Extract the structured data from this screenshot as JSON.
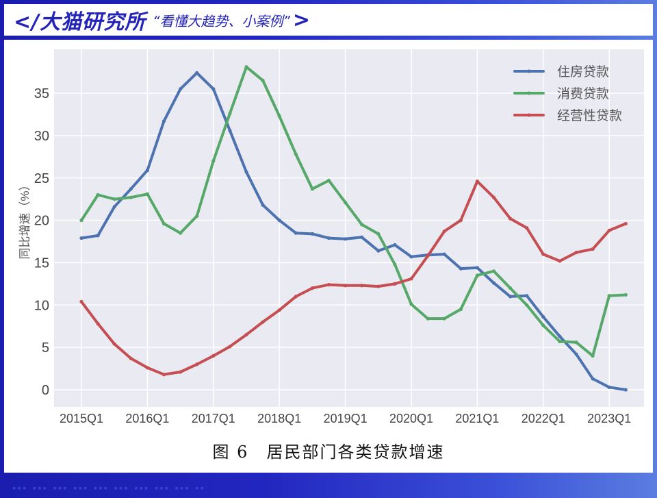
{
  "header": {
    "brand": "</大猫研究所",
    "slogan": "“看懂大趋势、小案例”",
    "brand_close": ">"
  },
  "caption": "图 6　居民部门各类贷款增速",
  "footer_dots": "▪▪▪ ▪▪▪ ▪▪▪ ▪▪▪ ▪▪▪ ▪▪▪ ▪▪▪ ▪▪▪ ▪▪▪ ▪▪",
  "colors": {
    "housing": "#4c72b0",
    "consumer": "#55a868",
    "business": "#c44e52",
    "plot_bg": "#eaeaf2",
    "brand": "#2424b8"
  },
  "chart_data": {
    "type": "line",
    "title": "图 6　居民部门各类贷款增速",
    "xlabel": "",
    "ylabel": "同比增速（%）",
    "ylim": [
      -2,
      39
    ],
    "yticks": [
      0,
      5,
      10,
      15,
      20,
      25,
      30,
      35
    ],
    "xtick_labels": [
      "2015Q1",
      "2016Q1",
      "2017Q1",
      "2018Q1",
      "2019Q1",
      "2020Q1",
      "2021Q1",
      "2022Q1",
      "2023Q1"
    ],
    "grid": true,
    "legend_position": "upper right",
    "x": [
      "2015Q1",
      "2015Q2",
      "2015Q3",
      "2015Q4",
      "2016Q1",
      "2016Q2",
      "2016Q3",
      "2016Q4",
      "2017Q1",
      "2017Q2",
      "2017Q3",
      "2017Q4",
      "2018Q1",
      "2018Q2",
      "2018Q3",
      "2018Q4",
      "2019Q1",
      "2019Q2",
      "2019Q3",
      "2019Q4",
      "2020Q1",
      "2020Q2",
      "2020Q3",
      "2020Q4",
      "2021Q1",
      "2021Q2",
      "2021Q3",
      "2021Q4",
      "2022Q1",
      "2022Q2",
      "2022Q3",
      "2022Q4",
      "2023Q1",
      "2023Q2"
    ],
    "series": [
      {
        "name": "住房贷款",
        "color": "#4c72b0",
        "values": [
          17.9,
          18.2,
          21.6,
          23.7,
          25.9,
          31.7,
          35.5,
          37.4,
          35.5,
          30.6,
          25.7,
          21.8,
          20.0,
          18.5,
          18.4,
          17.9,
          17.8,
          18.0,
          16.4,
          17.1,
          15.7,
          15.9,
          16.0,
          14.3,
          14.4,
          12.6,
          11.0,
          11.1,
          8.6,
          6.3,
          4.2,
          1.3,
          0.3,
          0.0
        ]
      },
      {
        "name": "消费贷款",
        "color": "#55a868",
        "values": [
          20.0,
          23.0,
          22.5,
          22.7,
          23.1,
          19.6,
          18.5,
          20.5,
          27.0,
          32.6,
          38.1,
          36.5,
          32.3,
          27.8,
          23.7,
          24.7,
          22.1,
          19.5,
          18.4,
          14.8,
          10.1,
          8.4,
          8.4,
          9.5,
          13.5,
          14.0,
          12.0,
          10.0,
          7.6,
          5.7,
          5.6,
          4.0,
          11.1,
          11.2
        ]
      },
      {
        "name": "经营性贷款",
        "color": "#c44e52",
        "values": [
          10.4,
          7.8,
          5.4,
          3.7,
          2.6,
          1.8,
          2.1,
          3.0,
          4.0,
          5.1,
          6.5,
          8.0,
          9.4,
          11.0,
          12.0,
          12.4,
          12.3,
          12.3,
          12.2,
          12.5,
          13.1,
          15.8,
          18.7,
          20.0,
          24.6,
          22.7,
          20.2,
          19.1,
          16.0,
          15.2,
          16.2,
          16.6,
          18.8,
          19.6
        ]
      }
    ]
  }
}
